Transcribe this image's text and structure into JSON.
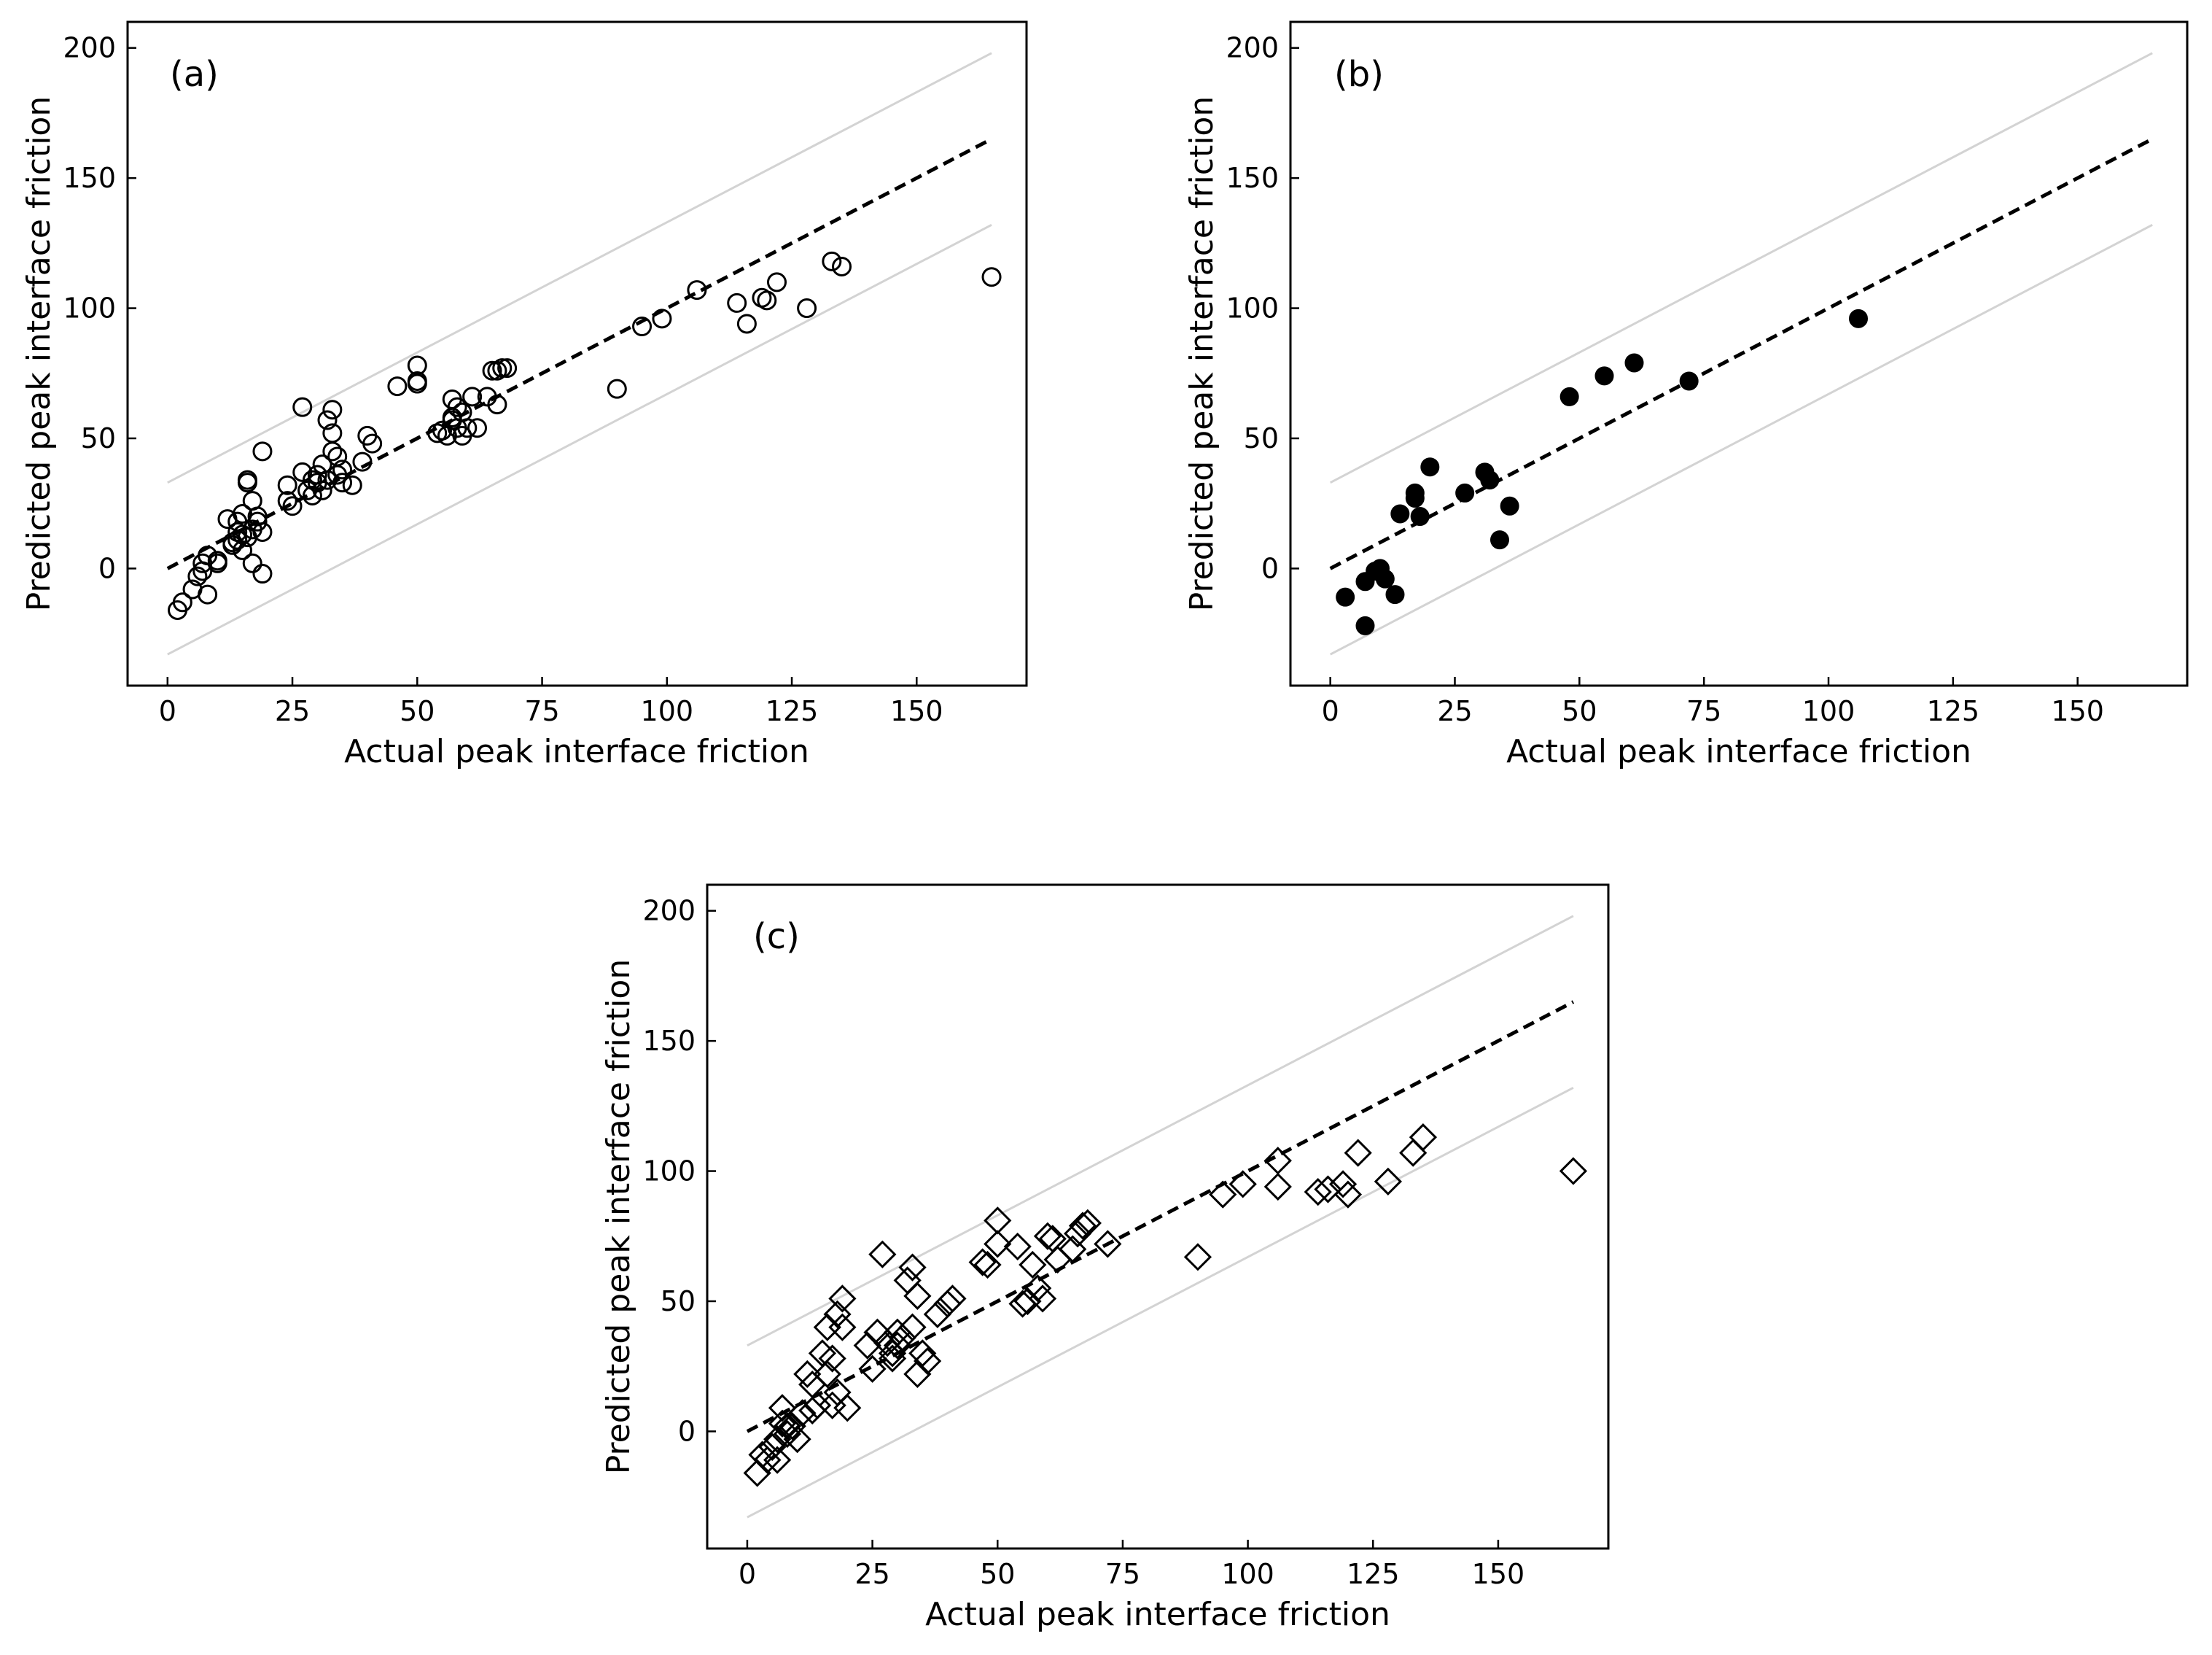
{
  "figure": {
    "panels": 3
  },
  "chart_data": [
    {
      "type": "scatter",
      "panel_label": "(a)",
      "marker": "open-circle",
      "xlabel": "Actual peak interface friction",
      "ylabel": "Predicted peak interface friction",
      "xlim": [
        -8,
        172
      ],
      "ylim": [
        -45,
        210
      ],
      "xticks": [
        0,
        25,
        50,
        75,
        100,
        125,
        150
      ],
      "yticks": [
        0,
        50,
        100,
        150,
        200
      ],
      "reference_lines": [
        {
          "name": "1:1 line",
          "style": "dashed",
          "x": [
            0,
            165
          ],
          "y": [
            0,
            165
          ],
          "color": "#000000"
        },
        {
          "name": "upper bound",
          "style": "solid",
          "x": [
            0,
            165
          ],
          "y": [
            33,
            198
          ],
          "color": "#d3d3d3"
        },
        {
          "name": "lower bound",
          "style": "solid",
          "x": [
            0,
            165
          ],
          "y": [
            -33,
            132
          ],
          "color": "#d3d3d3"
        }
      ],
      "series": [
        {
          "name": "data",
          "x": [
            2,
            3,
            5,
            6,
            7,
            7,
            8,
            8,
            10,
            10,
            12,
            13,
            13,
            14,
            14,
            14,
            15,
            15,
            15,
            16,
            16,
            16,
            17,
            17,
            17,
            18,
            18,
            19,
            19,
            19,
            24,
            24,
            25,
            27,
            27,
            28,
            29,
            29,
            30,
            30,
            31,
            31,
            32,
            32,
            33,
            33,
            33,
            34,
            34,
            35,
            35,
            37,
            39,
            40,
            41,
            46,
            50,
            50,
            50,
            54,
            55,
            56,
            57,
            57,
            57,
            58,
            58,
            59,
            59,
            60,
            61,
            62,
            64,
            65,
            66,
            66,
            67,
            68,
            90,
            95,
            99,
            106,
            114,
            116,
            119,
            120,
            122,
            128,
            133,
            135,
            165
          ],
          "y": [
            -16,
            -13,
            -8,
            -3,
            -1,
            2,
            -10,
            5,
            2,
            3,
            19,
            9,
            10,
            14,
            18,
            11,
            7,
            13,
            21,
            33,
            34,
            12,
            26,
            2,
            15,
            18,
            20,
            -2,
            14,
            45,
            32,
            26,
            24,
            62,
            37,
            30,
            28,
            34,
            33,
            36,
            40,
            30,
            57,
            34,
            45,
            61,
            52,
            43,
            36,
            38,
            33,
            32,
            41,
            51,
            48,
            70,
            71,
            72,
            78,
            52,
            53,
            51,
            65,
            57,
            58,
            54,
            62,
            51,
            60,
            54,
            66,
            54,
            66,
            76,
            63,
            76,
            77,
            77,
            69,
            93,
            96,
            107,
            102,
            94,
            104,
            103,
            110,
            100,
            118,
            116,
            112
          ]
        }
      ]
    },
    {
      "type": "scatter",
      "panel_label": "(b)",
      "marker": "filled-circle",
      "xlabel": "Actual peak interface friction",
      "ylabel": "Predicted peak interface friction",
      "xlim": [
        -8,
        172
      ],
      "ylim": [
        -45,
        210
      ],
      "xticks": [
        0,
        25,
        50,
        75,
        100,
        125,
        150
      ],
      "yticks": [
        0,
        50,
        100,
        150,
        200
      ],
      "reference_lines": [
        {
          "name": "1:1 line",
          "style": "dashed",
          "x": [
            0,
            165
          ],
          "y": [
            0,
            165
          ],
          "color": "#000000"
        },
        {
          "name": "upper bound",
          "style": "solid",
          "x": [
            0,
            165
          ],
          "y": [
            33,
            198
          ],
          "color": "#d3d3d3"
        },
        {
          "name": "lower bound",
          "style": "solid",
          "x": [
            0,
            165
          ],
          "y": [
            -33,
            132
          ],
          "color": "#d3d3d3"
        }
      ],
      "series": [
        {
          "name": "data",
          "x": [
            3,
            7,
            7,
            9,
            10,
            11,
            13,
            14,
            17,
            17,
            18,
            20,
            27,
            31,
            32,
            34,
            36,
            48,
            55,
            61,
            72,
            106
          ],
          "y": [
            -11,
            -22,
            -5,
            -1,
            0,
            -4,
            -10,
            21,
            27,
            29,
            20,
            39,
            29,
            37,
            34,
            11,
            24,
            66,
            74,
            79,
            72,
            96
          ]
        }
      ]
    },
    {
      "type": "scatter",
      "panel_label": "(c)",
      "marker": "open-diamond",
      "xlabel": "Actual peak interface friction",
      "ylabel": "Predicted peak interface friction",
      "xlim": [
        -8,
        172
      ],
      "ylim": [
        -45,
        210
      ],
      "xticks": [
        0,
        25,
        50,
        75,
        100,
        125,
        150
      ],
      "yticks": [
        0,
        50,
        100,
        150,
        200
      ],
      "reference_lines": [
        {
          "name": "1:1 line",
          "style": "dashed",
          "x": [
            0,
            165
          ],
          "y": [
            0,
            165
          ],
          "color": "#000000"
        },
        {
          "name": "upper bound",
          "style": "solid",
          "x": [
            0,
            165
          ],
          "y": [
            33,
            198
          ],
          "color": "#d3d3d3"
        },
        {
          "name": "lower bound",
          "style": "solid",
          "x": [
            0,
            165
          ],
          "y": [
            -33,
            132
          ],
          "color": "#d3d3d3"
        }
      ],
      "series": [
        {
          "name": "data",
          "x": [
            2,
            3,
            4,
            5,
            6,
            6,
            7,
            7,
            8,
            8,
            9,
            10,
            11,
            12,
            13,
            13,
            14,
            15,
            16,
            16,
            17,
            17,
            18,
            18,
            19,
            19,
            20,
            24,
            25,
            26,
            27,
            28,
            29,
            29,
            30,
            30,
            31,
            32,
            33,
            33,
            34,
            34,
            35,
            36,
            38,
            40,
            41,
            47,
            48,
            50,
            50,
            54,
            55,
            56,
            57,
            58,
            59,
            60,
            61,
            62,
            65,
            66,
            67,
            68,
            72,
            90,
            95,
            99,
            106,
            106,
            114,
            116,
            119,
            120,
            122,
            128,
            133,
            135,
            165
          ],
          "y": [
            -16,
            -9,
            -11,
            -6,
            -3,
            -11,
            3,
            9,
            -1,
            2,
            2,
            -3,
            7,
            22,
            8,
            18,
            10,
            30,
            40,
            22,
            28,
            10,
            45,
            15,
            51,
            40,
            9,
            33,
            24,
            38,
            68,
            34,
            28,
            30,
            33,
            38,
            36,
            58,
            63,
            40,
            22,
            52,
            30,
            27,
            45,
            49,
            51,
            65,
            64,
            81,
            72,
            71,
            49,
            50,
            64,
            55,
            51,
            75,
            74,
            66,
            70,
            76,
            79,
            80,
            72,
            67,
            91,
            95,
            94,
            104,
            92,
            93,
            95,
            91,
            107,
            96,
            107,
            113,
            100
          ]
        }
      ]
    }
  ]
}
